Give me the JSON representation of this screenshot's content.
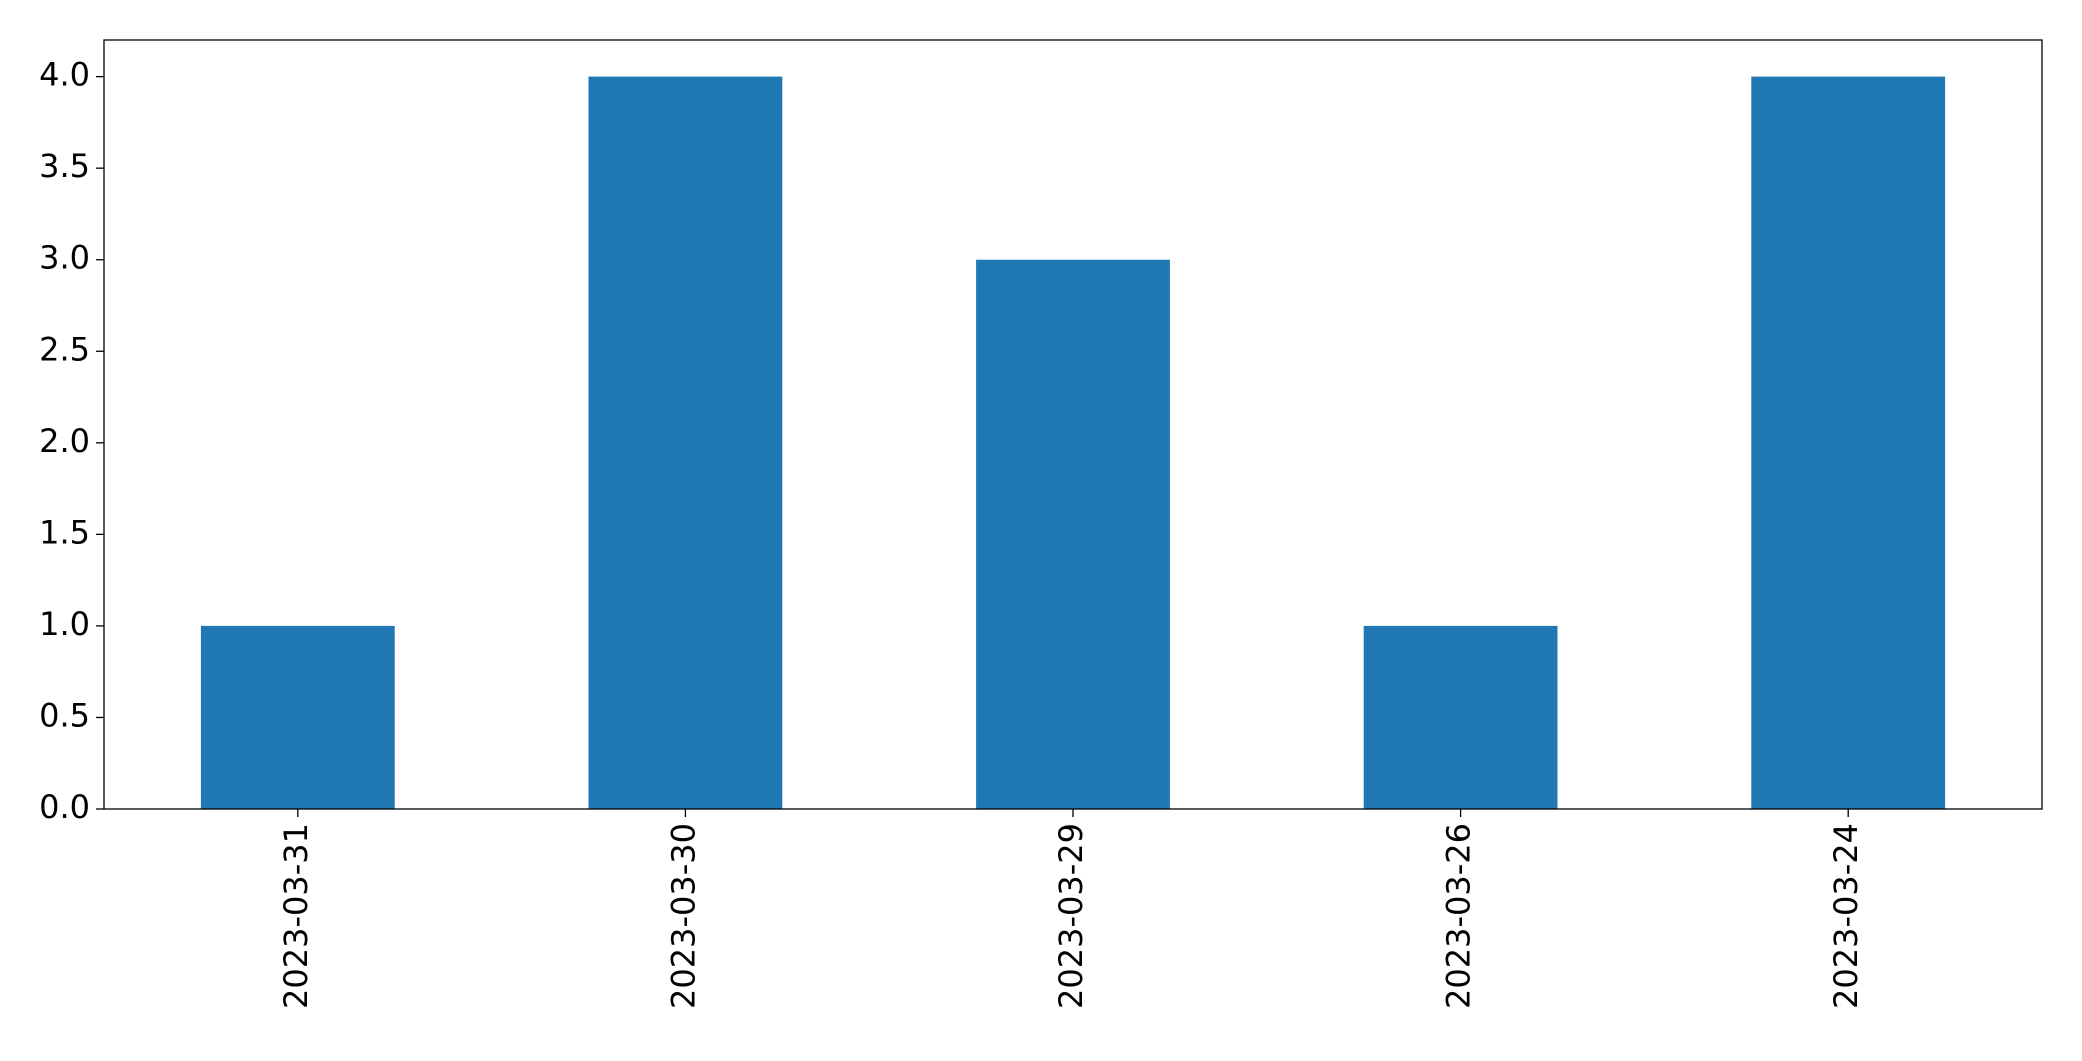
{
  "chart_data": {
    "type": "bar",
    "categories": [
      "2023-03-31",
      "2023-03-30",
      "2023-03-29",
      "2023-03-26",
      "2023-03-24"
    ],
    "values": [
      1,
      4,
      3,
      1,
      4
    ],
    "color": "#1f77b4",
    "ylim": [
      0,
      4.2
    ],
    "yticks": [
      {
        "value": 0,
        "label": "0.0"
      },
      {
        "value": 0.5,
        "label": "0.5"
      },
      {
        "value": 1,
        "label": "1.0"
      },
      {
        "value": 1.5,
        "label": "1.5"
      },
      {
        "value": 2,
        "label": "2.0"
      },
      {
        "value": 2.5,
        "label": "2.5"
      },
      {
        "value": 3,
        "label": "3.0"
      },
      {
        "value": 3.5,
        "label": "3.5"
      },
      {
        "value": 4,
        "label": "4.0"
      }
    ],
    "grid": false
  }
}
